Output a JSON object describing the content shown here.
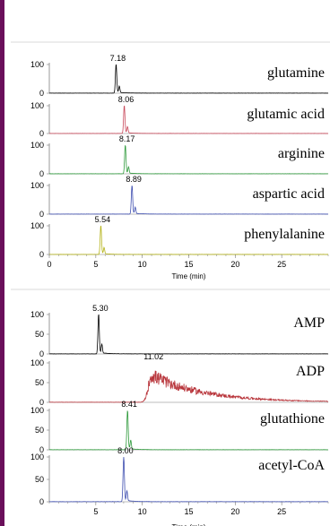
{
  "accent": "#6a0f5a",
  "chart_data": [
    {
      "type": "line",
      "chart_kind": "stacked chromatograms",
      "xlabel": "Time (min)",
      "xlim": [
        0,
        30
      ],
      "xticks": [
        "0",
        "5",
        "10",
        "15",
        "20",
        "25"
      ],
      "xtick_values": [
        0,
        5,
        10,
        15,
        20,
        25
      ],
      "ylim": [
        0,
        100
      ],
      "grid": false,
      "series": [
        {
          "name": "glutamine",
          "color": "#000000",
          "peak_time": 7.18,
          "peak_label": "7.18",
          "yticks": [
            "0",
            "100"
          ]
        },
        {
          "name": "glutamic acid",
          "color": "#c8485a",
          "peak_time": 8.06,
          "peak_label": "8.06",
          "yticks": [
            "0",
            "100"
          ]
        },
        {
          "name": "arginine",
          "color": "#2f9a3c",
          "peak_time": 8.17,
          "peak_label": "8.17",
          "yticks": [
            "0",
            "100"
          ]
        },
        {
          "name": "aspartic acid",
          "color": "#3f4fb0",
          "peak_time": 8.89,
          "peak_label": "8.89",
          "yticks": [
            "0",
            "100"
          ]
        },
        {
          "name": "phenylalanine",
          "color": "#b5b31a",
          "peak_time": 5.54,
          "peak_label": "5.54",
          "yticks": [
            "0",
            "100"
          ]
        }
      ]
    },
    {
      "type": "line",
      "chart_kind": "stacked chromatograms",
      "xlabel": "Time (min)",
      "xlim": [
        0,
        30
      ],
      "xticks": [
        "5",
        "10",
        "15",
        "20",
        "25"
      ],
      "xtick_values": [
        5,
        10,
        15,
        20,
        25
      ],
      "ylim": [
        0,
        100
      ],
      "grid": false,
      "series": [
        {
          "name": "AMP",
          "color": "#000000",
          "peak_time": 5.3,
          "peak_label": "5.30",
          "yticks": [
            "0",
            "50",
            "100"
          ]
        },
        {
          "name": "ADP",
          "color": "#b8343a",
          "peak_time": 11.02,
          "peak_label": "11.02",
          "tailing": true,
          "yticks": [
            "0",
            "50",
            "100"
          ]
        },
        {
          "name": "glutathione",
          "color": "#2f9a3c",
          "peak_time": 8.41,
          "peak_label": "8.41",
          "yticks": [
            "0",
            "50",
            "100"
          ]
        },
        {
          "name": "acetyl-CoA",
          "color": "#3f4fb0",
          "peak_time": 8.0,
          "peak_label": "8.00",
          "yticks": [
            "0",
            "50",
            "100"
          ]
        }
      ]
    }
  ]
}
